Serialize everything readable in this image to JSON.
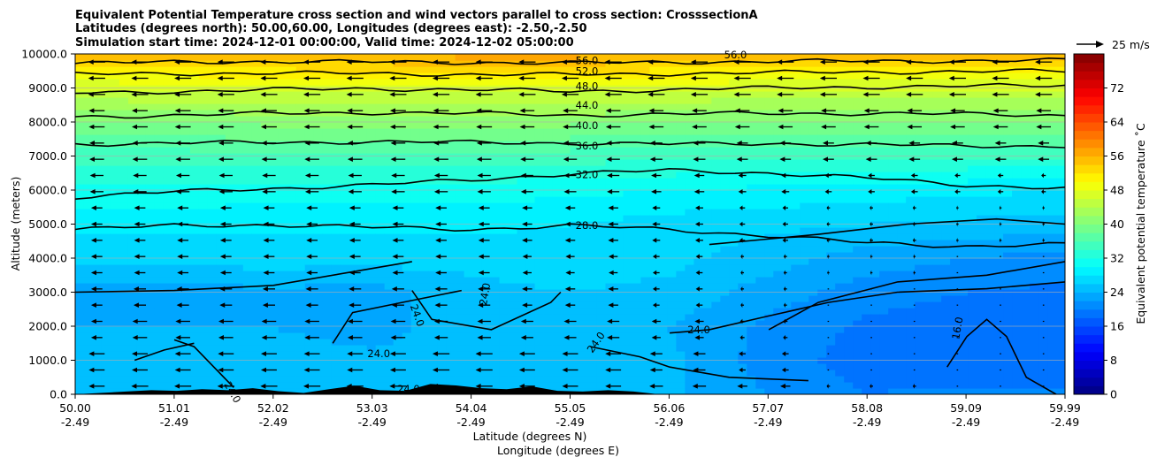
{
  "chart_data": {
    "type": "heatmap",
    "title_lines": [
      "Equivalent Potential Temperature cross section and wind vectors parallel to cross section: CrosssectionA",
      "Latitudes (degrees north): 50.00,60.00, Longitudes (degrees east): -2.50,-2.50",
      "Simulation start time: 2024-12-01 00:00:00, Valid time: 2024-12-02 05:00:00"
    ],
    "xlabel_lines": [
      "Latitude (degrees N)",
      "Longitude (degrees E)"
    ],
    "ylabel": "Altitude (meters)",
    "x_range": [
      50.0,
      59.99
    ],
    "ylim": [
      0,
      10000
    ],
    "x_ticks": [
      {
        "lat": "50.00",
        "lon": "-2.49"
      },
      {
        "lat": "51.01",
        "lon": "-2.49"
      },
      {
        "lat": "52.02",
        "lon": "-2.49"
      },
      {
        "lat": "53.03",
        "lon": "-2.49"
      },
      {
        "lat": "54.04",
        "lon": "-2.49"
      },
      {
        "lat": "55.05",
        "lon": "-2.49"
      },
      {
        "lat": "56.06",
        "lon": "-2.49"
      },
      {
        "lat": "57.07",
        "lon": "-2.49"
      },
      {
        "lat": "58.08",
        "lon": "-2.49"
      },
      {
        "lat": "59.09",
        "lon": "-2.49"
      },
      {
        "lat": "59.99",
        "lon": "-2.49"
      }
    ],
    "y_ticks": [
      "0.0",
      "1000.0",
      "2000.0",
      "3000.0",
      "4000.0",
      "5000.0",
      "6000.0",
      "7000.0",
      "8000.0",
      "9000.0",
      "10000.0"
    ],
    "grid": true,
    "colorbar": {
      "label": "Equivalent potential temperature ˚C",
      "min": 0,
      "max": 80,
      "ticks": [
        "0",
        "8",
        "16",
        "24",
        "32",
        "40",
        "48",
        "56",
        "64",
        "72"
      ]
    },
    "wind_key": {
      "label": "25 m/s"
    },
    "contour_labels": [
      "56.0",
      "52.0",
      "48.0",
      "44.0",
      "40.0",
      "36.0",
      "32.0",
      "28.0",
      "24.0",
      "16.0"
    ],
    "contours": [
      {
        "level": 52,
        "heights": [
          9720,
          9760,
          9780,
          9760,
          9750,
          9730,
          9760,
          9780,
          9790,
          9800,
          9810
        ]
      },
      {
        "level": 48,
        "heights": [
          9400,
          9420,
          9440,
          9420,
          9400,
          9390,
          9420,
          9450,
          9470,
          9480,
          9500
        ]
      },
      {
        "level": 44,
        "heights": [
          8850,
          8900,
          8950,
          8980,
          8950,
          8900,
          8950,
          9000,
          9030,
          9050,
          9080
        ]
      },
      {
        "level": 40,
        "heights": [
          8150,
          8200,
          8250,
          8280,
          8250,
          8200,
          8230,
          8260,
          8250,
          8230,
          8200
        ]
      },
      {
        "level": 36,
        "heights": [
          7350,
          7380,
          7400,
          7420,
          7400,
          7380,
          7350,
          7370,
          7330,
          7300,
          7300
        ]
      },
      {
        "level": 32,
        "heights": [
          5800,
          5950,
          6050,
          6150,
          6300,
          6480,
          6580,
          6500,
          6350,
          6150,
          6050
        ]
      },
      {
        "level": 28,
        "heights": [
          4850,
          4950,
          4980,
          4900,
          4850,
          4950,
          4850,
          4650,
          4450,
          4350,
          4400
        ]
      }
    ],
    "theta_columns": {
      "x": [
        50.0,
        51.0,
        52.0,
        53.0,
        54.0,
        55.0,
        56.0,
        57.0,
        58.0,
        59.0,
        59.99
      ],
      "z": [
        0,
        1000,
        2000,
        3000,
        4000,
        5000,
        6000,
        7000,
        8000,
        9000,
        10000
      ],
      "values": [
        [
          25.5,
          25.0,
          24.0,
          23.0,
          27.0,
          28.5,
          31.5,
          35.0,
          40.0,
          46.0,
          56.0
        ],
        [
          25.5,
          25.0,
          24.0,
          23.0,
          27.0,
          28.5,
          31.5,
          35.0,
          40.0,
          46.5,
          56.0
        ],
        [
          25.5,
          25.0,
          24.0,
          23.5,
          27.0,
          28.5,
          31.0,
          35.5,
          40.5,
          46.5,
          56.5
        ],
        [
          25.5,
          24.5,
          23.0,
          23.0,
          27.0,
          28.5,
          31.0,
          35.5,
          41.0,
          47.0,
          56.5
        ],
        [
          25.5,
          25.5,
          25.5,
          25.5,
          26.5,
          28.5,
          31.0,
          35.5,
          40.5,
          47.0,
          57.0
        ],
        [
          26.0,
          26.0,
          26.0,
          26.0,
          27.0,
          28.0,
          30.5,
          35.0,
          40.5,
          46.5,
          57.0
        ],
        [
          24.5,
          24.5,
          24.0,
          25.5,
          26.5,
          27.0,
          30.0,
          34.5,
          40.0,
          46.5,
          56.5
        ],
        [
          22.0,
          21.0,
          21.5,
          23.0,
          25.0,
          26.5,
          29.5,
          34.0,
          40.0,
          46.0,
          56.0
        ],
        [
          20.0,
          19.0,
          19.5,
          21.0,
          23.0,
          26.0,
          29.0,
          34.0,
          40.0,
          46.0,
          56.0
        ],
        [
          20.5,
          18.0,
          18.5,
          20.0,
          22.0,
          25.5,
          28.5,
          34.0,
          40.0,
          46.0,
          56.0
        ],
        [
          20.5,
          18.0,
          18.0,
          19.5,
          21.0,
          25.0,
          28.0,
          34.0,
          40.0,
          46.0,
          56.0
        ]
      ]
    },
    "wind_speed_ms": [
      [
        14,
        15,
        15,
        15,
        15,
        14,
        12,
        9,
        3,
        1,
        1
      ],
      [
        14,
        14,
        14,
        14,
        15,
        14,
        11,
        6,
        1,
        1,
        1
      ],
      [
        10,
        13,
        13,
        13,
        12,
        11,
        8,
        4,
        1,
        1,
        1
      ],
      [
        10,
        11,
        11,
        11,
        11,
        9,
        6,
        3,
        1,
        1,
        1
      ],
      [
        10,
        10,
        10,
        10,
        10,
        8,
        6,
        3,
        2,
        1,
        1
      ],
      [
        10,
        10,
        10,
        10,
        10,
        9,
        7,
        5,
        3,
        2,
        2
      ],
      [
        12,
        12,
        12,
        12,
        12,
        11,
        9,
        7,
        6,
        5,
        4
      ],
      [
        13,
        13,
        13,
        13,
        13,
        12,
        11,
        10,
        10,
        10,
        10
      ],
      [
        14,
        14,
        14,
        14,
        14,
        13,
        13,
        13,
        13,
        13,
        13
      ],
      [
        15,
        15,
        15,
        15,
        15,
        15,
        15,
        15,
        15,
        15,
        15
      ],
      [
        15,
        15,
        15,
        15,
        15,
        15,
        15,
        15,
        15,
        15,
        15
      ]
    ],
    "terrain_height_m": [
      0,
      40,
      80,
      120,
      100,
      150,
      120,
      180,
      90,
      40,
      150,
      250,
      120,
      100,
      300,
      260,
      180,
      150,
      230,
      100,
      80,
      120,
      80,
      0,
      0,
      0,
      0,
      0,
      0,
      0,
      0,
      0,
      0,
      0,
      0,
      0,
      0,
      0,
      0,
      0
    ]
  }
}
